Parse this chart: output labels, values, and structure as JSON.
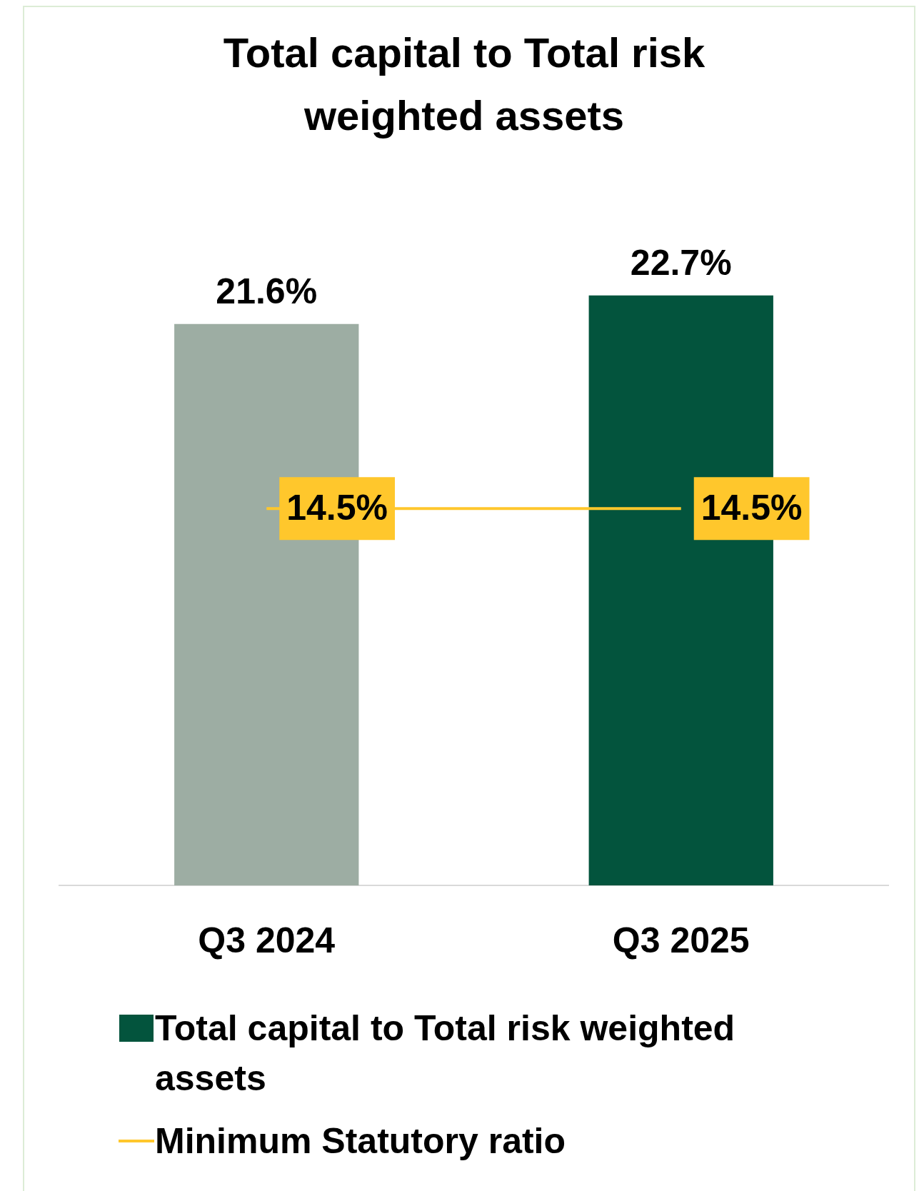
{
  "chart_data": {
    "type": "bar",
    "title": "Total capital to Total risk weighted assets",
    "categories": [
      "Q3 2024",
      "Q3 2025"
    ],
    "series": [
      {
        "name": "Total capital to Total risk weighted assets",
        "color": "#03543d",
        "colors": [
          "#9dada3",
          "#03543d"
        ],
        "values": [
          21.6,
          22.7
        ],
        "value_labels": [
          "21.6%",
          "22.7%"
        ]
      },
      {
        "name": "Minimum Statutory ratio",
        "type": "line",
        "color": "#ffc72c",
        "values": [
          14.5,
          14.5
        ],
        "value_labels": [
          "14.5%",
          "14.5%"
        ]
      }
    ],
    "grid": false,
    "legend": "bottom",
    "marker": "none",
    "line_style": "solid"
  }
}
